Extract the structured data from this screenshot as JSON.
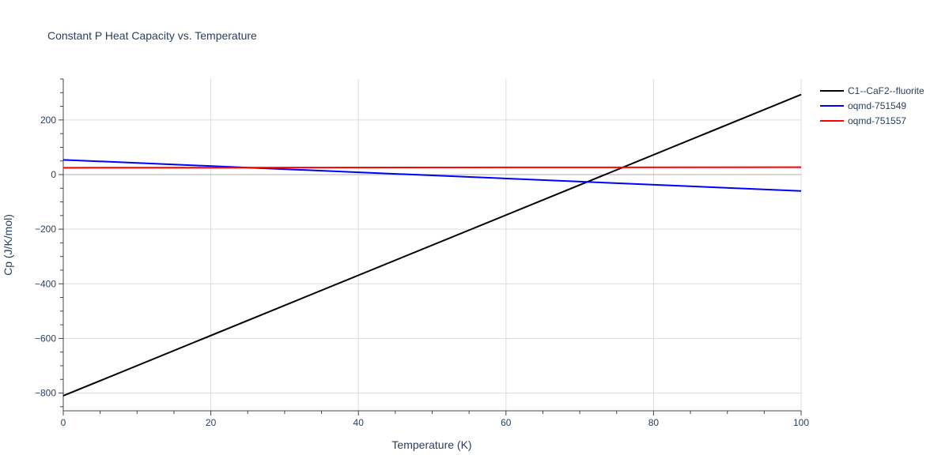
{
  "chart_data": {
    "type": "line",
    "title": "Constant P Heat Capacity vs. Temperature",
    "xlabel": "Temperature (K)",
    "ylabel": "Cp (J/K/mol)",
    "xlim": [
      0,
      100
    ],
    "ylim": [
      -865,
      350
    ],
    "xticks": [
      0,
      20,
      40,
      60,
      80,
      100
    ],
    "yticks": [
      -800,
      -600,
      -400,
      -200,
      0,
      200
    ],
    "ytick_labels": [
      "−800",
      "−600",
      "−400",
      "−200",
      "0",
      "200"
    ],
    "grid": true,
    "legend_position": "top-right",
    "series": [
      {
        "name": "C1--CaF2--fluorite",
        "color": "#000000",
        "x": [
          0,
          100
        ],
        "y": [
          -810,
          293
        ]
      },
      {
        "name": "oqmd-751549",
        "color": "#0000ff",
        "x": [
          0,
          100
        ],
        "y": [
          54,
          -60
        ]
      },
      {
        "name": "oqmd-751557",
        "color": "#ff0000",
        "x": [
          0,
          100
        ],
        "y": [
          25,
          27
        ]
      }
    ]
  }
}
